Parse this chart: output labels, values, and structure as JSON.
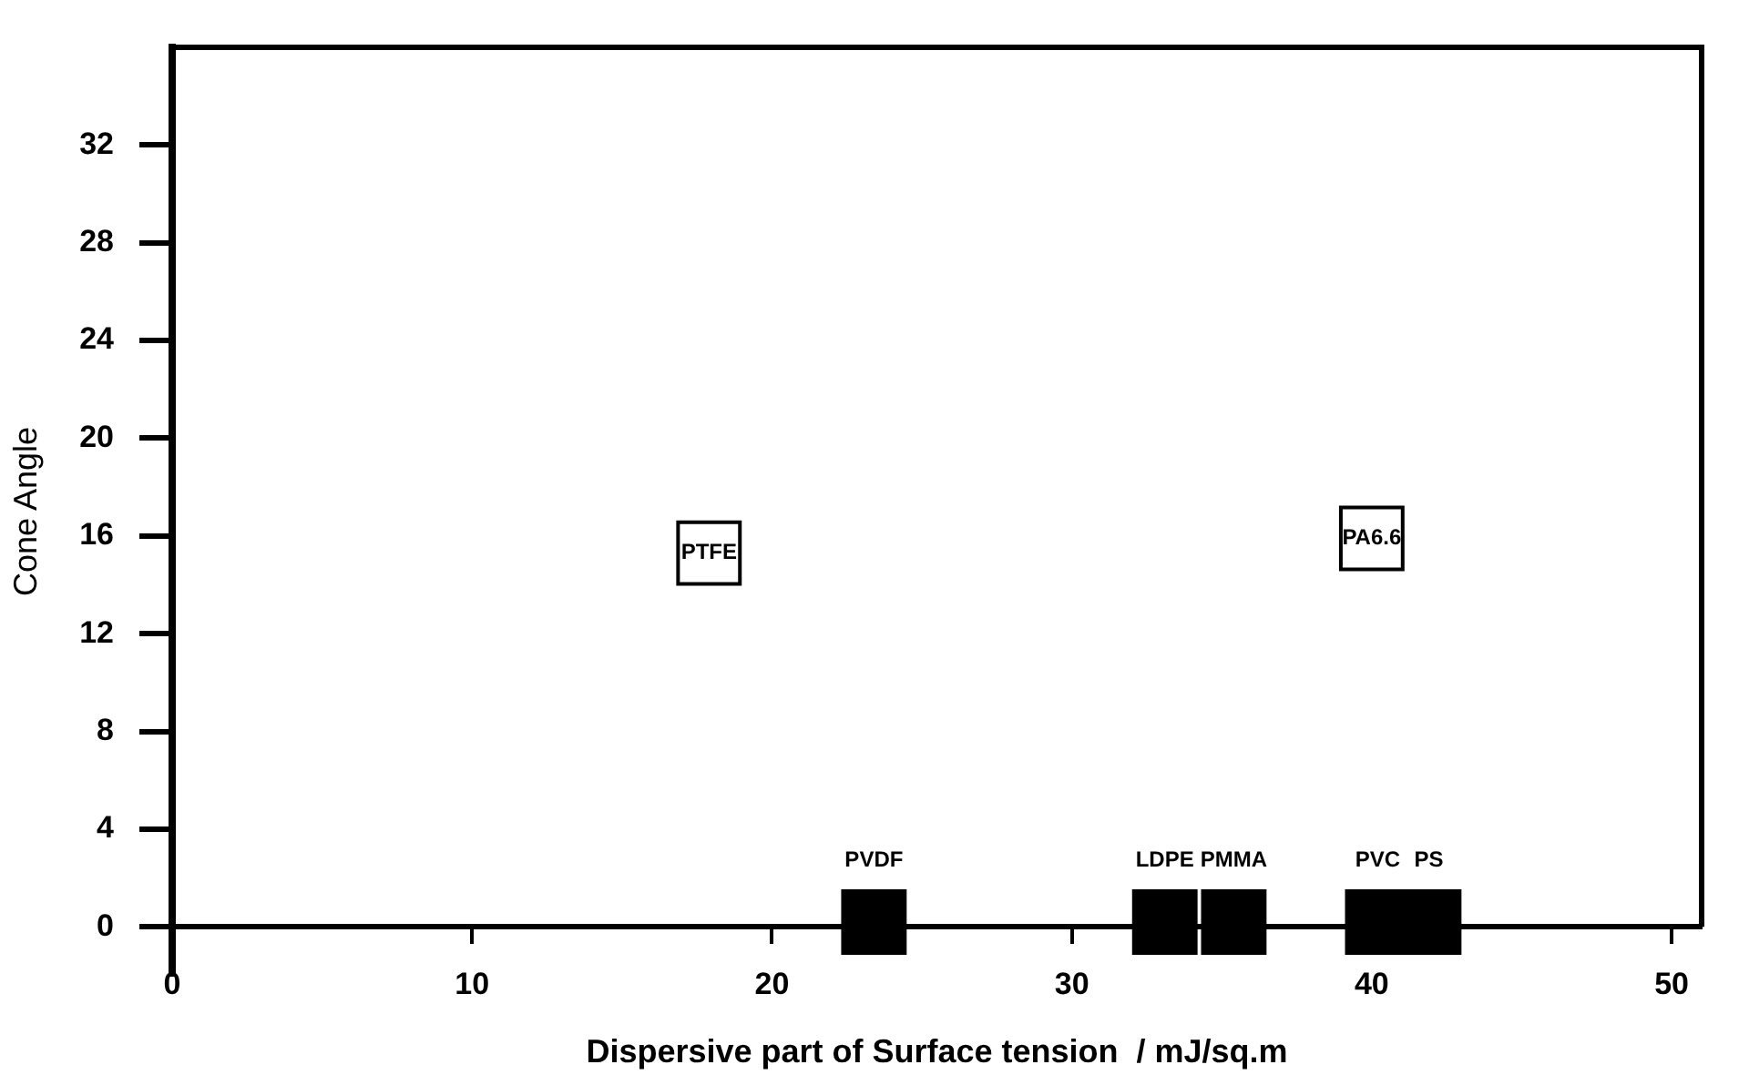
{
  "chart_data": {
    "type": "scatter",
    "xlabel": "Dispersive part of Surface tension  / mJ/sq.m",
    "ylabel": "Cone Angle",
    "xlim": [
      0,
      51
    ],
    "ylim": [
      -2,
      36
    ],
    "xticks": [
      0,
      10,
      20,
      30,
      40,
      50
    ],
    "yticks": [
      0,
      4,
      8,
      12,
      16,
      20,
      24,
      28,
      32
    ],
    "grid": false,
    "legend": false,
    "marker": "square",
    "series": [
      {
        "color": "#ffffff",
        "x": [
          17.9,
          40.0
        ],
        "values": [
          15.3,
          15.9
        ]
      },
      {
        "color": "#000000",
        "x": [
          23.4,
          33.1,
          35.4,
          40.2,
          41.9
        ],
        "values": [
          0.2,
          0.2,
          0.2,
          0.2,
          0.2
        ]
      }
    ],
    "annotations": [
      {
        "text": "PTFE",
        "x": 17.9,
        "y": 15.3
      },
      {
        "text": "PA6.6",
        "x": 40.0,
        "y": 15.9
      },
      {
        "text": "PVDF",
        "x": 23.4,
        "y": 0.2
      },
      {
        "text": "LDPE",
        "x": 33.1,
        "y": 0.2
      },
      {
        "text": "PMMA",
        "x": 35.4,
        "y": 0.2
      },
      {
        "text": "PVC",
        "x": 40.2,
        "y": 0.2
      },
      {
        "text": "PS",
        "x": 41.9,
        "y": 0.2
      }
    ]
  }
}
